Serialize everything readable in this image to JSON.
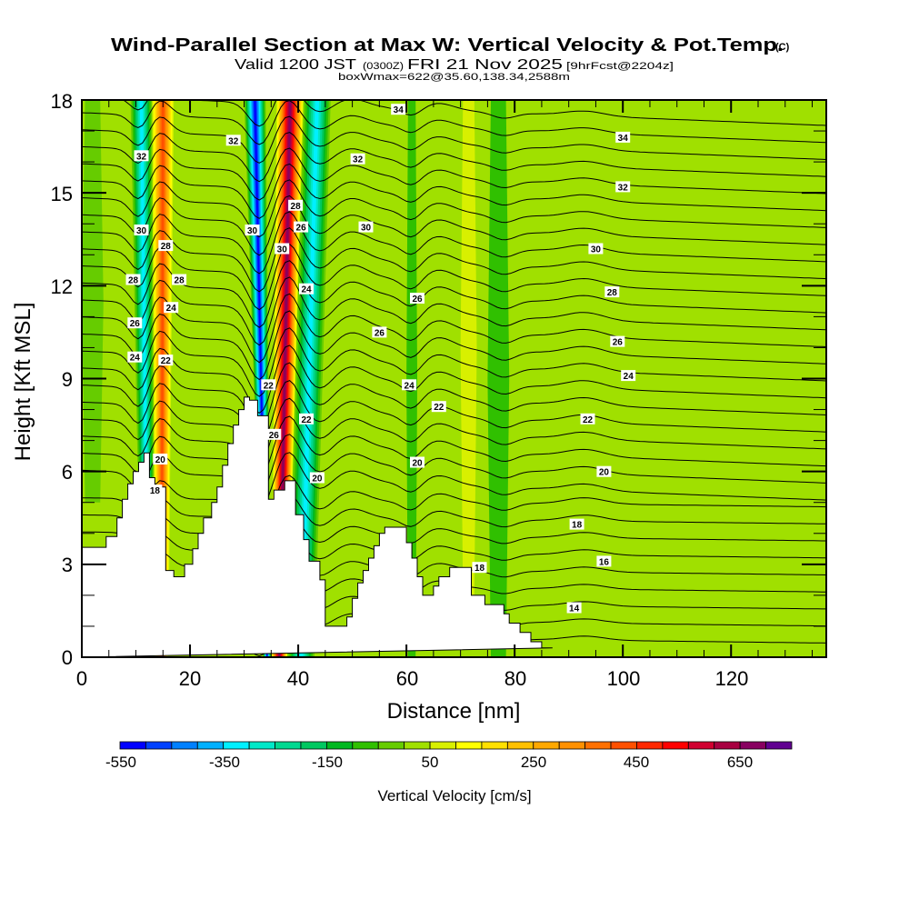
{
  "header": {
    "title": "Wind-Parallel Section at Max W: Vertical Velocity & Pot.Temp.",
    "title_mark": "(C)",
    "valid_prefix": "Valid 1200 JST",
    "valid_utc": "(0300Z)",
    "valid_date": "FRI 21 Nov 2025",
    "forecast": "[9hrFcst@2204z]",
    "boxinfo": "boxWmax=622@35.60,138.34,2588m"
  },
  "chart_data": {
    "type": "heatmap",
    "title": "Wind-Parallel Section at Max W: Vertical Velocity & Pot.Temp.",
    "xlabel": "Distance [nm]",
    "ylabel": "Height [Kft MSL]",
    "xlim": [
      0,
      137.6
    ],
    "ylim": [
      0,
      18
    ],
    "x_ticks": [
      0,
      20,
      40,
      60,
      80,
      100,
      120
    ],
    "x_tick_labels": [
      "0",
      "20",
      "40",
      "60",
      "80",
      "100",
      "120"
    ],
    "y_ticks": [
      0,
      3,
      6,
      9,
      12,
      15,
      18
    ],
    "y_tick_labels": [
      "0",
      "3",
      "6",
      "9",
      "12",
      "15",
      "18"
    ],
    "colorbar": {
      "title": "Vertical Velocity [cm/s]",
      "min": -550,
      "max": 750,
      "step": 50,
      "tick_values": [
        -550,
        -350,
        -150,
        50,
        250,
        450,
        650
      ],
      "tick_labels": [
        "-550",
        "-350",
        "-150",
        "50",
        "250",
        "450",
        "650"
      ],
      "colors": [
        "#0000ff",
        "#0040ff",
        "#0080ff",
        "#00b0ff",
        "#00f0ff",
        "#00e8c8",
        "#00d890",
        "#00c860",
        "#00b820",
        "#30c000",
        "#66cc00",
        "#a0e000",
        "#d8f000",
        "#ffff00",
        "#ffe000",
        "#ffc000",
        "#ffa800",
        "#ff9000",
        "#ff7000",
        "#ff5000",
        "#ff2800",
        "#ff0000",
        "#d00030",
        "#a80040",
        "#880060",
        "#600090"
      ],
      "placement": "bottom"
    },
    "wmax": {
      "value_cm_s": 622,
      "lat": 35.6,
      "lon": 138.34,
      "height_m": 2588
    },
    "terrain": {
      "x": [
        0,
        4.5,
        4.5,
        6.5,
        6.5,
        7.5,
        7.5,
        8.5,
        8.5,
        9.5,
        9.5,
        10.5,
        10.5,
        11.5,
        11.5,
        12.5,
        12.5,
        13.5,
        13.5,
        15.5,
        15.5,
        17,
        17,
        19,
        19,
        20.5,
        20.5,
        21.5,
        21.5,
        22.5,
        22.5,
        24,
        24,
        25,
        25,
        26,
        26,
        27,
        27,
        28,
        28,
        29,
        29,
        30,
        30,
        31,
        31,
        32.5,
        32.5,
        34.5,
        34.5,
        35.5,
        35.5,
        37.5,
        37.5,
        39.5,
        39.5,
        41,
        41,
        42,
        42,
        44,
        44,
        45,
        45,
        49,
        49,
        50,
        50,
        51,
        51,
        52,
        52,
        53,
        53,
        54,
        54,
        55,
        55,
        56,
        56,
        60,
        60,
        61,
        61,
        62,
        62,
        63,
        63,
        65,
        65,
        66,
        66,
        68,
        68,
        72,
        72,
        74.5,
        74.5,
        78,
        78,
        79,
        79,
        81,
        81,
        83,
        83,
        85,
        85,
        87,
        87,
        137.6
      ],
      "y": [
        3.55,
        3.55,
        3.9,
        3.9,
        4.5,
        4.5,
        5.1,
        5.1,
        5.6,
        5.6,
        6.0,
        6.0,
        6.3,
        6.3,
        6.6,
        6.6,
        5.8,
        5.8,
        5.5,
        5.5,
        2.8,
        2.8,
        2.6,
        2.6,
        3.0,
        3.0,
        3.5,
        3.5,
        4.0,
        4.0,
        4.5,
        4.5,
        5.0,
        5.0,
        5.5,
        5.5,
        6.2,
        6.2,
        6.9,
        6.9,
        7.5,
        7.5,
        8.0,
        8.0,
        8.4,
        8.4,
        8.3,
        8.3,
        7.8,
        7.8,
        5.1,
        5.1,
        5.4,
        5.4,
        5.7,
        5.7,
        4.6,
        4.6,
        3.8,
        3.8,
        3.1,
        3.1,
        2.5,
        2.5,
        1.0,
        1.0,
        1.3,
        1.3,
        1.9,
        1.9,
        2.4,
        2.4,
        2.8,
        2.8,
        3.2,
        3.2,
        3.6,
        3.6,
        4.0,
        4.0,
        4.2,
        4.2,
        3.7,
        3.7,
        3.2,
        3.2,
        2.6,
        2.6,
        2.0,
        2.0,
        2.3,
        2.3,
        2.6,
        2.6,
        2.9,
        2.9,
        2.0,
        2.0,
        1.7,
        1.7,
        1.4,
        1.4,
        1.1,
        1.1,
        0.8,
        0.8,
        0.5,
        0.5,
        0.3,
        0.3
      ]
    },
    "velocity_bands": [
      {
        "name": "downdraft-1",
        "x_top": [
          9,
          13
        ],
        "x_bottom": [
          11,
          13.5
        ],
        "peak": -350
      },
      {
        "name": "updraft-1",
        "x_top": [
          13,
          17
        ],
        "x_bottom": [
          13.5,
          16
        ],
        "peak": 400
      },
      {
        "name": "downdraft-2",
        "x_top": [
          30,
          34
        ],
        "x_bottom": [
          33.5,
          35
        ],
        "peak": -550
      },
      {
        "name": "updraft-2",
        "x_top": [
          36,
          41
        ],
        "x_bottom": [
          35,
          38
        ],
        "peak": 650
      },
      {
        "name": "downdraft-3",
        "x_top": [
          41,
          46
        ],
        "x_bottom": [
          38,
          43
        ],
        "peak": -350
      }
    ],
    "theta_contours": {
      "label": "Pot.Temp.",
      "levels": [
        14,
        16,
        18,
        20,
        22,
        24,
        26,
        28,
        30,
        32,
        34
      ],
      "labels": [
        {
          "text": "32",
          "x": 11,
          "y": 16.2
        },
        {
          "text": "32",
          "x": 28,
          "y": 16.7
        },
        {
          "text": "34",
          "x": 58.5,
          "y": 17.7
        },
        {
          "text": "32",
          "x": 51,
          "y": 16.1
        },
        {
          "text": "34",
          "x": 100,
          "y": 16.8
        },
        {
          "text": "32",
          "x": 100,
          "y": 15.2
        },
        {
          "text": "30",
          "x": 11,
          "y": 13.8
        },
        {
          "text": "28",
          "x": 15.5,
          "y": 13.3
        },
        {
          "text": "30",
          "x": 31.5,
          "y": 13.8
        },
        {
          "text": "28",
          "x": 39.5,
          "y": 14.6
        },
        {
          "text": "26",
          "x": 40.5,
          "y": 13.9
        },
        {
          "text": "30",
          "x": 37,
          "y": 13.2
        },
        {
          "text": "30",
          "x": 52.5,
          "y": 13.9
        },
        {
          "text": "30",
          "x": 95,
          "y": 13.2
        },
        {
          "text": "28",
          "x": 9.5,
          "y": 12.2
        },
        {
          "text": "28",
          "x": 18,
          "y": 12.2
        },
        {
          "text": "24",
          "x": 41.5,
          "y": 11.9
        },
        {
          "text": "24",
          "x": 16.5,
          "y": 11.3
        },
        {
          "text": "26",
          "x": 62,
          "y": 11.6
        },
        {
          "text": "28",
          "x": 98,
          "y": 11.8
        },
        {
          "text": "26",
          "x": 55,
          "y": 10.5
        },
        {
          "text": "26",
          "x": 99,
          "y": 10.2
        },
        {
          "text": "26",
          "x": 9.8,
          "y": 10.8
        },
        {
          "text": "24",
          "x": 9.8,
          "y": 9.7
        },
        {
          "text": "22",
          "x": 15.5,
          "y": 9.6
        },
        {
          "text": "24",
          "x": 101,
          "y": 9.1
        },
        {
          "text": "24",
          "x": 60.5,
          "y": 8.8
        },
        {
          "text": "22",
          "x": 34.5,
          "y": 8.8
        },
        {
          "text": "22",
          "x": 66,
          "y": 8.1
        },
        {
          "text": "22",
          "x": 41.5,
          "y": 7.7
        },
        {
          "text": "22",
          "x": 93.5,
          "y": 7.7
        },
        {
          "text": "20",
          "x": 14.5,
          "y": 6.4
        },
        {
          "text": "26",
          "x": 35.5,
          "y": 7.2
        },
        {
          "text": "20",
          "x": 62,
          "y": 6.3
        },
        {
          "text": "20",
          "x": 96.5,
          "y": 6.0
        },
        {
          "text": "18",
          "x": 13.5,
          "y": 5.4
        },
        {
          "text": "20",
          "x": 43.5,
          "y": 5.8
        },
        {
          "text": "18",
          "x": 91.5,
          "y": 4.3
        },
        {
          "text": "16",
          "x": 96.5,
          "y": 3.1
        },
        {
          "text": "18",
          "x": 73.5,
          "y": 2.9
        },
        {
          "text": "14",
          "x": 91,
          "y": 1.6
        }
      ]
    }
  }
}
